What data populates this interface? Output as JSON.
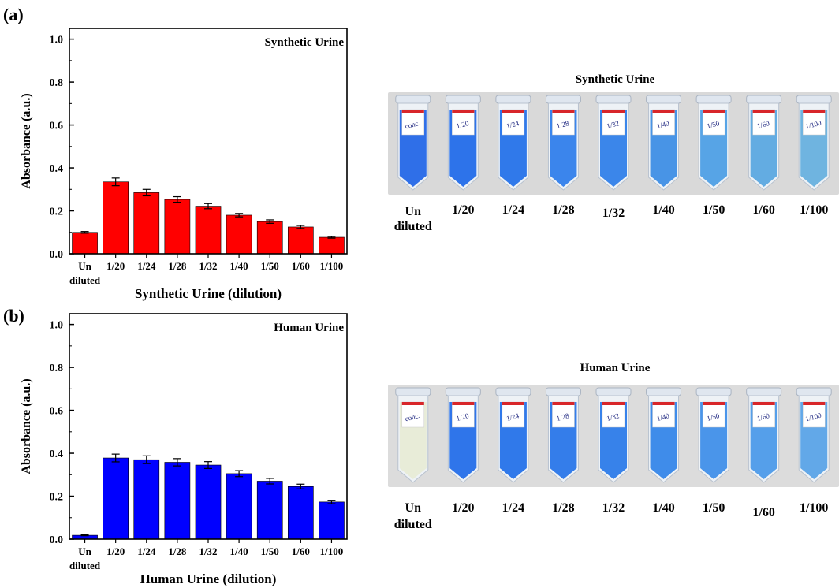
{
  "panels": [
    {
      "label": "(a)",
      "photo_title": "Synthetic Urine",
      "photo_tube_labels": [
        "Un",
        "1/20",
        "1/24",
        "1/28",
        "1/32",
        "1/40",
        "1/50",
        "1/60",
        "1/100"
      ],
      "photo_extra_label": "diluted",
      "tube_liquid_colors": [
        "#2f6fe8",
        "#2d73ea",
        "#3079ea",
        "#3b85ec",
        "#3b86ea",
        "#4894e6",
        "#57a4e6",
        "#63ace2",
        "#6fb4e0"
      ],
      "tube_stickers": [
        "conc.",
        "1/20",
        "1/24",
        "1/28",
        "1/32",
        "1/40",
        "1/50",
        "1/60",
        "1/100"
      ]
    },
    {
      "label": "(b)",
      "photo_title": "Human Urine",
      "photo_tube_labels": [
        "Un",
        "1/20",
        "1/24",
        "1/28",
        "1/32",
        "1/40",
        "1/50",
        "1/60",
        "1/100"
      ],
      "photo_extra_label": "diluted",
      "tube_liquid_colors": [
        "#e8ecd8",
        "#2f75ea",
        "#3079ea",
        "#347dea",
        "#3782ea",
        "#3f8cea",
        "#4a95ea",
        "#559fea",
        "#62a8e8"
      ],
      "tube_stickers": [
        "conc.",
        "1/20",
        "1/24",
        "1/28",
        "1/32",
        "1/40",
        "1/50",
        "1/60",
        "1/100"
      ]
    }
  ],
  "chart_data": [
    {
      "type": "bar",
      "title": "Synthetic Urine",
      "xlabel": "Synthetic Urine (dilution)",
      "ylabel": "Absorbance (a.u.)",
      "ylim": [
        0,
        1.05
      ],
      "yticks": [
        "0.0",
        "0.2",
        "0.4",
        "0.6",
        "0.8",
        "1.0"
      ],
      "categories": [
        "Un",
        "1/20",
        "1/24",
        "1/28",
        "1/32",
        "1/40",
        "1/50",
        "1/60",
        "1/100"
      ],
      "first_category_second_line": "diluted",
      "values": [
        0.1,
        0.335,
        0.285,
        0.253,
        0.222,
        0.18,
        0.15,
        0.125,
        0.077
      ],
      "errors": [
        0.004,
        0.018,
        0.015,
        0.013,
        0.012,
        0.008,
        0.008,
        0.007,
        0.004
      ],
      "color": "#ff0000",
      "legend_position": "top-right"
    },
    {
      "type": "bar",
      "title": "Human Urine",
      "xlabel": "Human Urine (dilution)",
      "ylabel": "Absorbance (a.u.)",
      "ylim": [
        0,
        1.05
      ],
      "yticks": [
        "0.0",
        "0.2",
        "0.4",
        "0.6",
        "0.8",
        "1.0"
      ],
      "categories": [
        "Un",
        "1/20",
        "1/24",
        "1/28",
        "1/32",
        "1/40",
        "1/50",
        "1/60",
        "1/100"
      ],
      "first_category_second_line": "diluted",
      "values": [
        0.018,
        0.378,
        0.37,
        0.358,
        0.345,
        0.305,
        0.27,
        0.245,
        0.173
      ],
      "errors": [
        0.002,
        0.018,
        0.018,
        0.017,
        0.016,
        0.014,
        0.013,
        0.011,
        0.008
      ],
      "color": "#0000ff",
      "legend_position": "top-right"
    }
  ]
}
